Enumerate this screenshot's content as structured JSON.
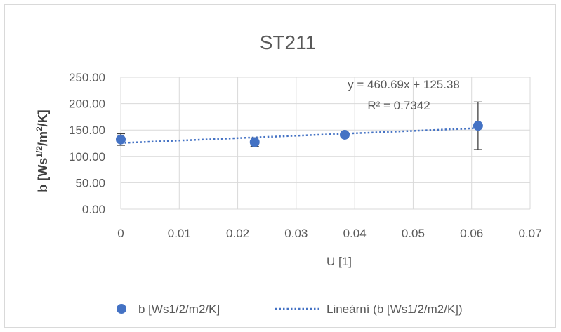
{
  "chart_data": {
    "type": "scatter",
    "title": "ST211",
    "xlabel": "U [1]",
    "ylabel": "b [Ws1/2/m2/K]",
    "ylabel_parts": [
      "b [Ws",
      "1/2",
      "/m",
      "2",
      "/K]"
    ],
    "xlim": [
      0,
      0.07
    ],
    "ylim": [
      0,
      250
    ],
    "x_ticks": [
      0,
      0.01,
      0.02,
      0.03,
      0.04,
      0.05,
      0.06,
      0.07
    ],
    "x_tick_labels": [
      "0",
      "0.01",
      "0.02",
      "0.03",
      "0.04",
      "0.05",
      "0.06",
      "0.07"
    ],
    "y_ticks": [
      0,
      50,
      100,
      150,
      200,
      250
    ],
    "y_tick_labels": [
      "0.00",
      "50.00",
      "100.00",
      "150.00",
      "200.00",
      "250.00"
    ],
    "grid": true,
    "legend_position": "bottom",
    "series": [
      {
        "name": "b [Ws1/2/m2/K]",
        "color": "#4472c4",
        "points": [
          {
            "x": 0,
            "y": 132,
            "err": 11
          },
          {
            "x": 0.0229,
            "y": 127,
            "err": 8
          },
          {
            "x": 0.0383,
            "y": 141,
            "err": 4
          },
          {
            "x": 0.0611,
            "y": 158,
            "err": 45
          }
        ]
      }
    ],
    "trendline": {
      "name": "Lineární (b [Ws1/2/m2/K])",
      "slope": 460.69,
      "intercept": 125.38,
      "x_range": [
        0,
        0.0611
      ],
      "color": "#4472c4",
      "equation": "y = 460.69x + 125.38",
      "r_squared": "R² = 0.7342"
    }
  }
}
